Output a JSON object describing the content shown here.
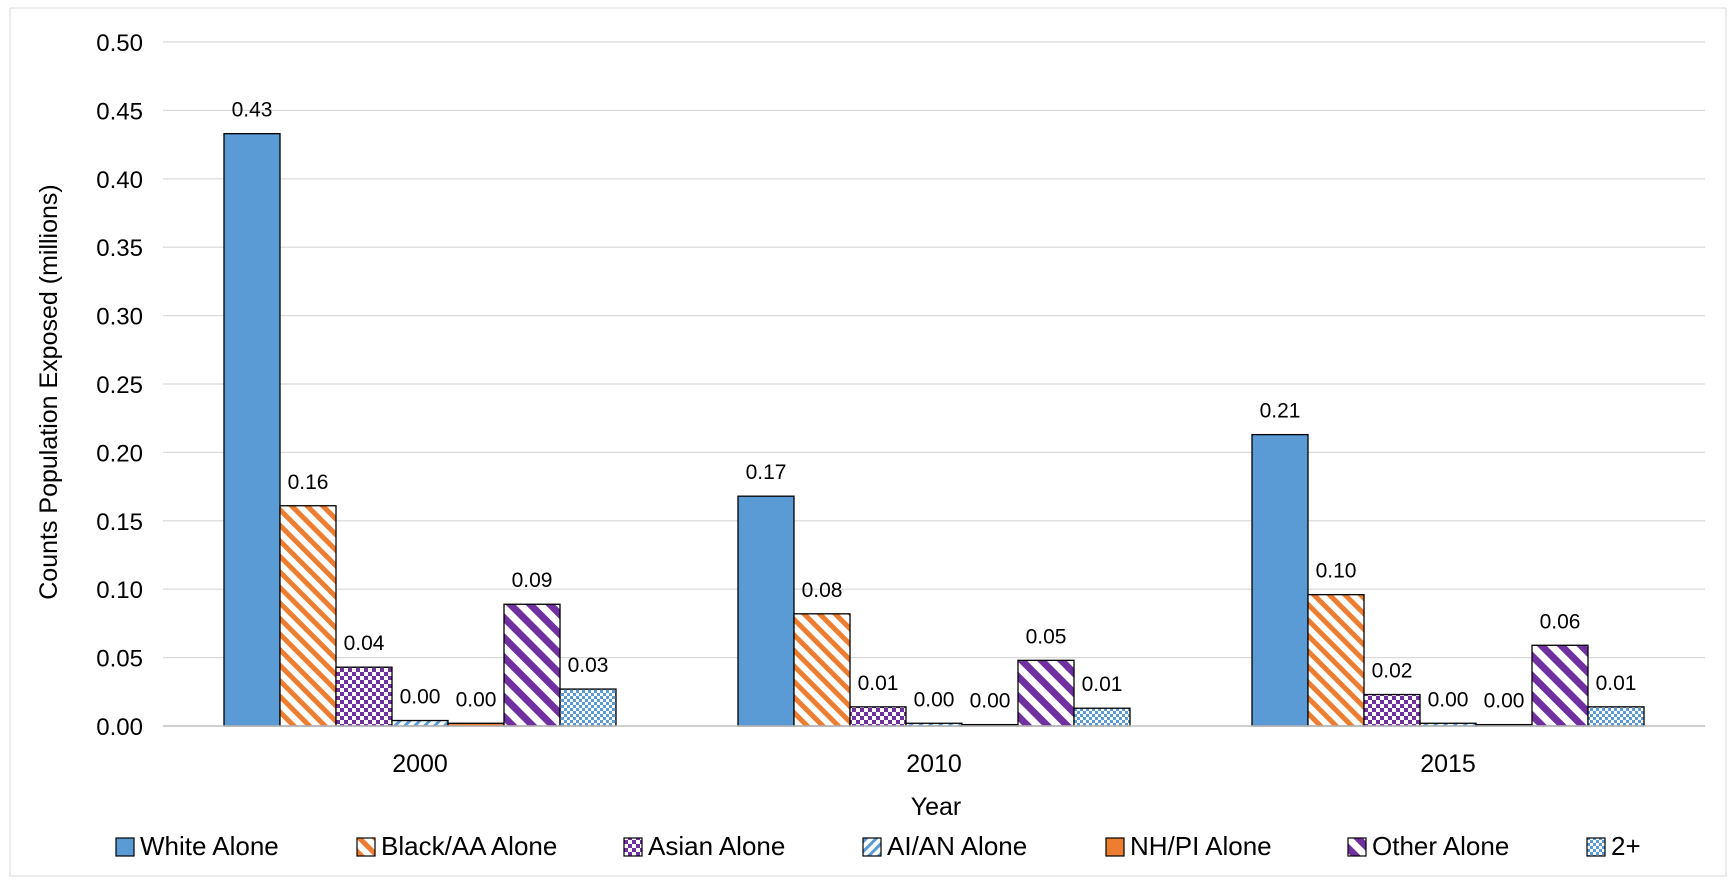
{
  "chart_data": {
    "type": "bar",
    "xlabel": "Year",
    "ylabel": "Counts Population Exposed (millions)",
    "ylim": [
      0,
      0.5
    ],
    "yticks": [
      "0.00",
      "0.05",
      "0.10",
      "0.15",
      "0.20",
      "0.25",
      "0.30",
      "0.35",
      "0.40",
      "0.45",
      "0.50"
    ],
    "grid": true,
    "legend_position": "bottom",
    "categories": [
      "2000",
      "2010",
      "2015"
    ],
    "series": [
      {
        "name": "White Alone",
        "values": [
          0.433,
          0.168,
          0.213
        ],
        "labels": [
          "0.43",
          "0.17",
          "0.21"
        ],
        "color": "#5b9bd5",
        "pattern": "solid"
      },
      {
        "name": "Black/AA Alone",
        "values": [
          0.161,
          0.082,
          0.096
        ],
        "labels": [
          "0.16",
          "0.08",
          "0.10"
        ],
        "color": "#ed7d31",
        "pattern": "diagonal"
      },
      {
        "name": "Asian Alone",
        "values": [
          0.043,
          0.014,
          0.023
        ],
        "labels": [
          "0.04",
          "0.01",
          "0.02"
        ],
        "color": "#7030a0",
        "pattern": "checker"
      },
      {
        "name": "AI/AN Alone",
        "values": [
          0.004,
          0.002,
          0.002
        ],
        "labels": [
          "0.00",
          "0.00",
          "0.00"
        ],
        "color": "#5b9bd5",
        "pattern": "diagonal-light"
      },
      {
        "name": "NH/PI Alone",
        "values": [
          0.002,
          0.001,
          0.001
        ],
        "labels": [
          "0.00",
          "0.00",
          "0.00"
        ],
        "color": "#ed7d31",
        "pattern": "solid"
      },
      {
        "name": "Other Alone",
        "values": [
          0.089,
          0.048,
          0.059
        ],
        "labels": [
          "0.09",
          "0.05",
          "0.06"
        ],
        "color": "#7030a0",
        "pattern": "diagonal-wide"
      },
      {
        "name": "2+",
        "values": [
          0.027,
          0.013,
          0.014
        ],
        "labels": [
          "0.03",
          "0.01",
          "0.01"
        ],
        "color": "#5b9bd5",
        "pattern": "checker-light"
      }
    ]
  }
}
